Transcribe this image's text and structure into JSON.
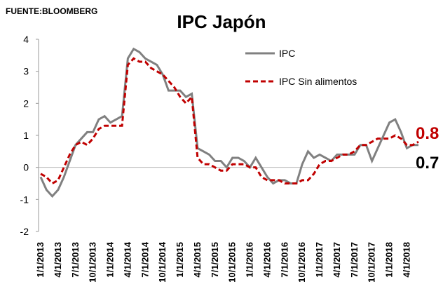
{
  "chart_data": {
    "type": "line",
    "title": "IPC Japón",
    "source": "FUENTE:BLOOMBERG",
    "categories": [
      "1/1/2013",
      null,
      null,
      "4/1/2013",
      null,
      null,
      "7/1/2013",
      null,
      null,
      "10/1/2013",
      null,
      null,
      "1/1/2014",
      null,
      null,
      "4/1/2014",
      null,
      null,
      "7/1/2014",
      null,
      null,
      "10/1/2014",
      null,
      null,
      "1/1/2015",
      null,
      null,
      "4/1/2015",
      null,
      null,
      "7/1/2015",
      null,
      null,
      "10/1/2015",
      null,
      null,
      "1/1/2016",
      null,
      null,
      "4/1/2016",
      null,
      null,
      "7/1/2016",
      null,
      null,
      "10/1/2016",
      null,
      null,
      "1/1/2017",
      null,
      null,
      "4/1/2017",
      null,
      null,
      "7/1/2017",
      null,
      null,
      "10/1/2017",
      null,
      null,
      "1/1/2018",
      null,
      null,
      "4/1/2018",
      null,
      null
    ],
    "series": [
      {
        "name": "IPC",
        "color": "#808080",
        "dash": false,
        "values": [
          -0.3,
          -0.7,
          -0.9,
          -0.7,
          -0.3,
          0.2,
          0.7,
          0.9,
          1.1,
          1.1,
          1.5,
          1.6,
          1.4,
          1.5,
          1.6,
          3.4,
          3.7,
          3.6,
          3.4,
          3.3,
          3.2,
          2.9,
          2.4,
          2.4,
          2.4,
          2.2,
          2.3,
          0.6,
          0.5,
          0.4,
          0.2,
          0.2,
          0.0,
          0.3,
          0.3,
          0.2,
          0.0,
          0.3,
          0.0,
          -0.3,
          -0.5,
          -0.4,
          -0.4,
          -0.5,
          -0.5,
          0.1,
          0.5,
          0.3,
          0.4,
          0.3,
          0.2,
          0.4,
          0.4,
          0.4,
          0.4,
          0.7,
          0.7,
          0.2,
          0.6,
          1.0,
          1.4,
          1.5,
          1.1,
          0.6,
          0.7,
          0.7
        ]
      },
      {
        "name": "IPC Sin alimentos",
        "color": "#c00000",
        "dash": true,
        "values": [
          -0.2,
          -0.3,
          -0.5,
          -0.4,
          0.0,
          0.4,
          0.7,
          0.8,
          0.7,
          0.9,
          1.2,
          1.3,
          1.3,
          1.3,
          1.3,
          3.2,
          3.4,
          3.3,
          3.3,
          3.1,
          3.0,
          2.9,
          2.7,
          2.5,
          2.2,
          2.0,
          2.2,
          0.3,
          0.1,
          0.1,
          0.0,
          -0.1,
          -0.1,
          0.1,
          0.1,
          0.1,
          0.0,
          0.0,
          -0.3,
          -0.4,
          -0.4,
          -0.4,
          -0.5,
          -0.5,
          -0.5,
          -0.4,
          -0.4,
          -0.2,
          0.1,
          0.2,
          0.2,
          0.3,
          0.4,
          0.4,
          0.5,
          0.7,
          0.7,
          0.8,
          0.9,
          0.9,
          0.9,
          1.0,
          0.9,
          0.7,
          0.7,
          0.8
        ]
      }
    ],
    "annotations": [
      {
        "text": "0.8",
        "color": "#c00000"
      },
      {
        "text": "0.7",
        "color": "#000000"
      }
    ],
    "ylim": [
      -2,
      4
    ],
    "yticks": [
      -2,
      -1,
      0,
      1,
      2,
      3,
      4
    ]
  }
}
